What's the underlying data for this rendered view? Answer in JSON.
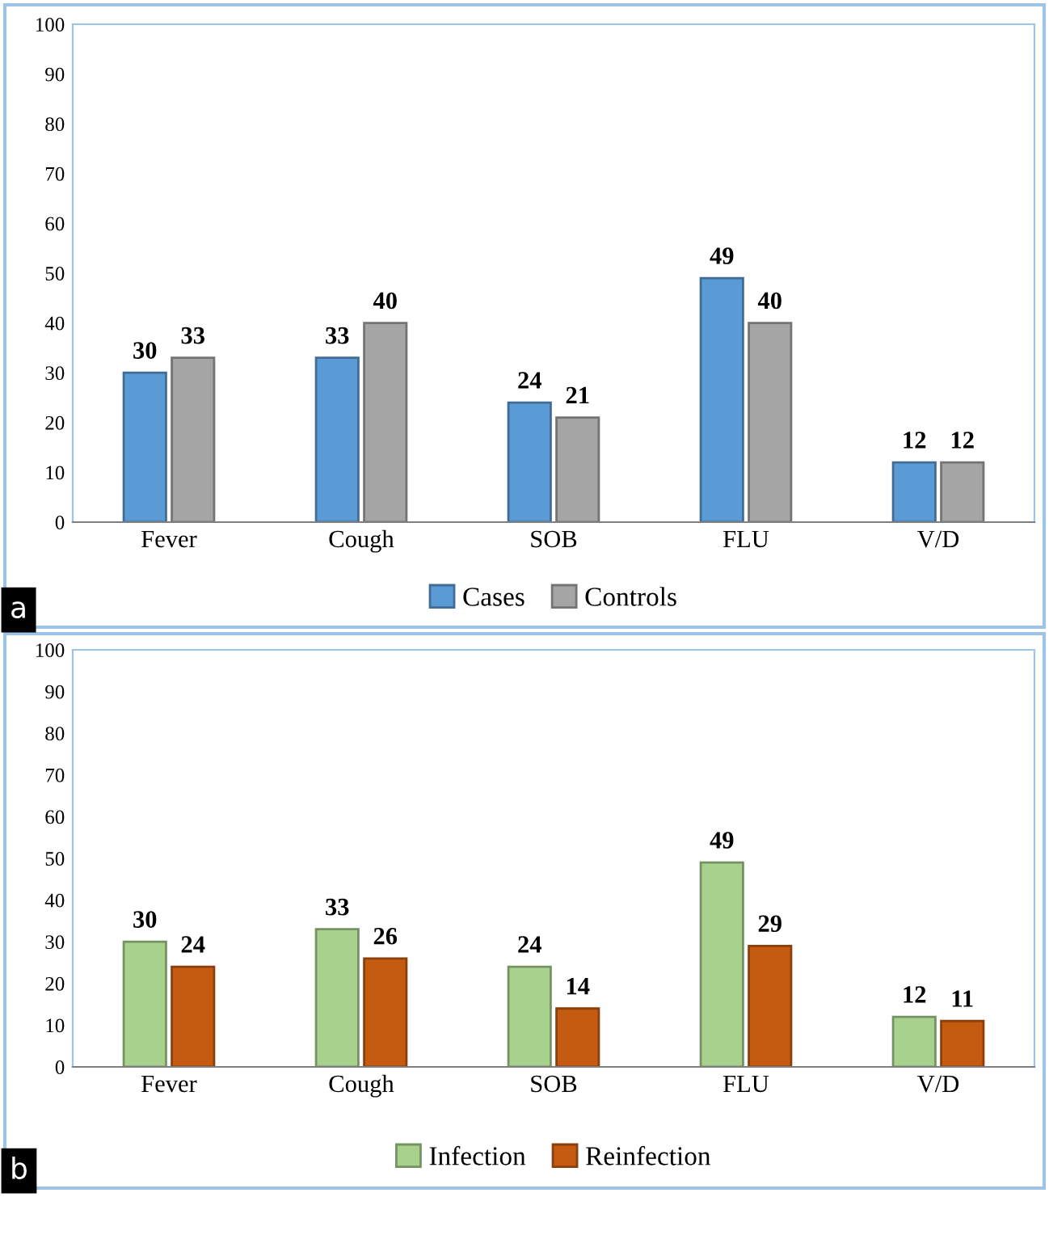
{
  "chart_data": [
    {
      "type": "bar",
      "categories": [
        "Fever",
        "Cough",
        "SOB",
        "FLU",
        "V/D"
      ],
      "series": [
        {
          "name": "Cases",
          "color": "#5b9bd5",
          "values": [
            30,
            33,
            24,
            49,
            12
          ]
        },
        {
          "name": "Controls",
          "color": "#a5a5a5",
          "values": [
            33,
            40,
            21,
            40,
            12
          ]
        }
      ],
      "ylim": [
        0,
        100
      ],
      "yticks": [
        0,
        10,
        20,
        30,
        40,
        50,
        60,
        70,
        80,
        90,
        100
      ],
      "data_labels": true,
      "legend": "bottom",
      "annotations": [
        "a"
      ]
    },
    {
      "type": "bar",
      "categories": [
        "Fever",
        "Cough",
        "SOB",
        "FLU",
        "V/D"
      ],
      "series": [
        {
          "name": "Infection",
          "color": "#a9d18e",
          "values": [
            30,
            33,
            24,
            49,
            12
          ]
        },
        {
          "name": "Reinfection",
          "color": "#c55a11",
          "values": [
            24,
            26,
            14,
            29,
            11
          ]
        }
      ],
      "ylim": [
        0,
        100
      ],
      "yticks": [
        0,
        10,
        20,
        30,
        40,
        50,
        60,
        70,
        80,
        90,
        100
      ],
      "data_labels": true,
      "legend": "bottom",
      "annotations": [
        "b"
      ]
    }
  ]
}
